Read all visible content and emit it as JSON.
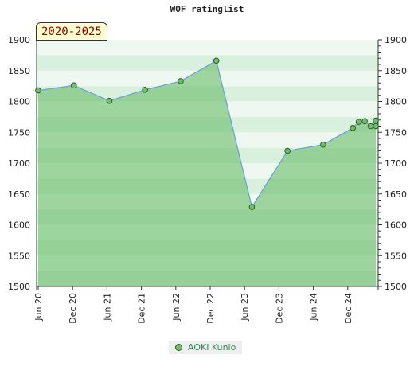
{
  "chart_data": {
    "type": "area",
    "title": "WOF ratinglist",
    "period_label": "2020-2025",
    "xlabel": "",
    "ylabel": "",
    "x_tick_labels": [
      "Jun 20",
      "Dec 20",
      "Jun 21",
      "Dec 21",
      "Jun 22",
      "Dec 22",
      "Jun 23",
      "Dec 23",
      "Jun 24",
      "Dec 24"
    ],
    "y_ticks": [
      1500,
      1550,
      1600,
      1650,
      1700,
      1750,
      1800,
      1850,
      1900
    ],
    "ylim": [
      1500,
      1900
    ],
    "x_range": [
      "2020-06",
      "2025-03"
    ],
    "grid": "horizontal bands",
    "legend_position": "bottom",
    "colors": {
      "fill": "#5cb85c",
      "line": "#6a9fd8",
      "marker": "#6fbf6f",
      "marker_edge": "#2d5a2d",
      "legend_text": "#2e8b57"
    },
    "series": [
      {
        "name": "AOKI Kunio",
        "points": [
          {
            "x": "2020-06",
            "y": 1818
          },
          {
            "x": "2020-12",
            "y": 1826
          },
          {
            "x": "2021-06",
            "y": 1801
          },
          {
            "x": "2021-12",
            "y": 1819
          },
          {
            "x": "2022-06",
            "y": 1833
          },
          {
            "x": "2022-12",
            "y": 1866
          },
          {
            "x": "2023-06",
            "y": 1629
          },
          {
            "x": "2023-12",
            "y": 1720
          },
          {
            "x": "2024-06",
            "y": 1730
          },
          {
            "x": "2024-11",
            "y": 1757
          },
          {
            "x": "2024-12",
            "y": 1767
          },
          {
            "x": "2025-01",
            "y": 1768
          },
          {
            "x": "2025-02",
            "y": 1760
          },
          {
            "x": "2025-03",
            "y": 1760
          },
          {
            "x": "2025-04",
            "y": 1769
          }
        ]
      }
    ]
  }
}
